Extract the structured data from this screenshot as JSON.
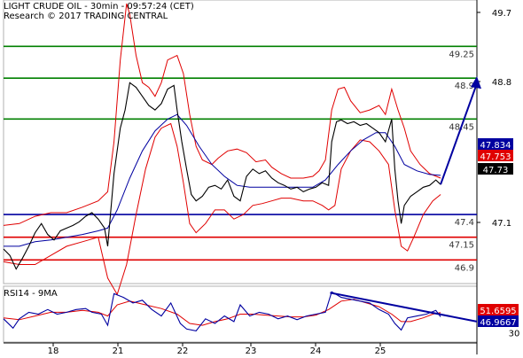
{
  "header": {
    "title": "LIGHT CRUDE OIL - 30min - 09:57:24 (CET)",
    "copyright": "Research © 2017 TRADING CENTRAL"
  },
  "chart_data": {
    "type": "line",
    "instrument": "LIGHT CRUDE OIL",
    "interval": "30min",
    "x_tick_labels": [
      "18",
      "21",
      "22",
      "23",
      "24",
      "25"
    ],
    "y_tick_labels": [
      49.7,
      48.8,
      47.1
    ],
    "ylim": [
      46.64,
      49.76
    ],
    "grid": false,
    "price_series": [
      [
        0,
        47.02
      ],
      [
        4,
        46.95
      ],
      [
        8,
        46.8
      ],
      [
        12,
        46.92
      ],
      [
        16,
        47.05
      ],
      [
        20,
        47.2
      ],
      [
        24,
        47.3
      ],
      [
        28,
        47.18
      ],
      [
        32,
        47.12
      ],
      [
        36,
        47.22
      ],
      [
        40,
        47.25
      ],
      [
        44,
        47.28
      ],
      [
        48,
        47.32
      ],
      [
        52,
        47.38
      ],
      [
        56,
        47.42
      ],
      [
        60,
        47.35
      ],
      [
        64,
        47.25
      ],
      [
        66,
        47.05
      ],
      [
        70,
        47.85
      ],
      [
        74,
        48.35
      ],
      [
        77,
        48.55
      ],
      [
        80,
        48.85
      ],
      [
        84,
        48.8
      ],
      [
        88,
        48.7
      ],
      [
        92,
        48.6
      ],
      [
        96,
        48.55
      ],
      [
        100,
        48.62
      ],
      [
        104,
        48.78
      ],
      [
        108,
        48.82
      ],
      [
        110,
        48.55
      ],
      [
        113,
        48.2
      ],
      [
        116,
        47.9
      ],
      [
        119,
        47.62
      ],
      [
        122,
        47.55
      ],
      [
        126,
        47.6
      ],
      [
        130,
        47.7
      ],
      [
        134,
        47.72
      ],
      [
        138,
        47.68
      ],
      [
        142,
        47.78
      ],
      [
        146,
        47.6
      ],
      [
        150,
        47.55
      ],
      [
        154,
        47.82
      ],
      [
        158,
        47.9
      ],
      [
        162,
        47.85
      ],
      [
        166,
        47.88
      ],
      [
        170,
        47.8
      ],
      [
        174,
        47.75
      ],
      [
        178,
        47.72
      ],
      [
        182,
        47.68
      ],
      [
        186,
        47.7
      ],
      [
        190,
        47.65
      ],
      [
        194,
        47.68
      ],
      [
        198,
        47.7
      ],
      [
        202,
        47.75
      ],
      [
        206,
        47.72
      ],
      [
        208,
        48.2
      ],
      [
        211,
        48.42
      ],
      [
        214,
        48.44
      ],
      [
        218,
        48.4
      ],
      [
        222,
        48.42
      ],
      [
        226,
        48.38
      ],
      [
        230,
        48.4
      ],
      [
        234,
        48.35
      ],
      [
        238,
        48.3
      ],
      [
        242,
        48.2
      ],
      [
        246,
        48.45
      ],
      [
        248,
        47.9
      ],
      [
        250,
        47.55
      ],
      [
        252,
        47.3
      ],
      [
        254,
        47.5
      ],
      [
        258,
        47.6
      ],
      [
        262,
        47.65
      ],
      [
        266,
        47.7
      ],
      [
        270,
        47.72
      ],
      [
        274,
        47.78
      ],
      [
        277,
        47.73
      ]
    ],
    "bollinger_upper": [
      [
        0,
        47.28
      ],
      [
        10,
        47.3
      ],
      [
        20,
        47.38
      ],
      [
        30,
        47.42
      ],
      [
        40,
        47.42
      ],
      [
        50,
        47.48
      ],
      [
        60,
        47.55
      ],
      [
        66,
        47.65
      ],
      [
        70,
        48.2
      ],
      [
        74,
        49.1
      ],
      [
        78,
        49.72
      ],
      [
        80,
        49.6
      ],
      [
        84,
        49.15
      ],
      [
        88,
        48.85
      ],
      [
        92,
        48.8
      ],
      [
        96,
        48.7
      ],
      [
        100,
        48.85
      ],
      [
        104,
        49.1
      ],
      [
        110,
        49.15
      ],
      [
        114,
        48.95
      ],
      [
        118,
        48.5
      ],
      [
        122,
        48.15
      ],
      [
        126,
        48.0
      ],
      [
        132,
        47.95
      ],
      [
        136,
        48.02
      ],
      [
        142,
        48.1
      ],
      [
        148,
        48.12
      ],
      [
        154,
        48.08
      ],
      [
        160,
        47.98
      ],
      [
        166,
        48.0
      ],
      [
        170,
        47.92
      ],
      [
        176,
        47.85
      ],
      [
        182,
        47.8
      ],
      [
        190,
        47.8
      ],
      [
        196,
        47.82
      ],
      [
        200,
        47.88
      ],
      [
        204,
        48.0
      ],
      [
        208,
        48.55
      ],
      [
        212,
        48.78
      ],
      [
        216,
        48.8
      ],
      [
        220,
        48.65
      ],
      [
        226,
        48.52
      ],
      [
        232,
        48.55
      ],
      [
        238,
        48.6
      ],
      [
        242,
        48.5
      ],
      [
        246,
        48.78
      ],
      [
        250,
        48.55
      ],
      [
        254,
        48.35
      ],
      [
        258,
        48.1
      ],
      [
        264,
        47.95
      ],
      [
        270,
        47.85
      ],
      [
        277,
        47.8
      ]
    ],
    "bollinger_lower": [
      [
        0,
        46.88
      ],
      [
        10,
        46.85
      ],
      [
        20,
        46.85
      ],
      [
        30,
        46.95
      ],
      [
        40,
        47.05
      ],
      [
        50,
        47.1
      ],
      [
        60,
        47.15
      ],
      [
        66,
        46.7
      ],
      [
        72,
        46.52
      ],
      [
        78,
        46.85
      ],
      [
        84,
        47.4
      ],
      [
        90,
        47.9
      ],
      [
        96,
        48.25
      ],
      [
        100,
        48.35
      ],
      [
        106,
        48.4
      ],
      [
        110,
        48.15
      ],
      [
        114,
        47.75
      ],
      [
        118,
        47.3
      ],
      [
        122,
        47.2
      ],
      [
        128,
        47.3
      ],
      [
        134,
        47.45
      ],
      [
        140,
        47.45
      ],
      [
        146,
        47.35
      ],
      [
        152,
        47.4
      ],
      [
        158,
        47.5
      ],
      [
        164,
        47.52
      ],
      [
        170,
        47.55
      ],
      [
        176,
        47.58
      ],
      [
        182,
        47.58
      ],
      [
        190,
        47.55
      ],
      [
        196,
        47.55
      ],
      [
        202,
        47.5
      ],
      [
        206,
        47.45
      ],
      [
        210,
        47.5
      ],
      [
        214,
        47.9
      ],
      [
        220,
        48.1
      ],
      [
        226,
        48.22
      ],
      [
        232,
        48.2
      ],
      [
        238,
        48.1
      ],
      [
        244,
        47.95
      ],
      [
        248,
        47.45
      ],
      [
        252,
        47.05
      ],
      [
        256,
        47.0
      ],
      [
        260,
        47.15
      ],
      [
        266,
        47.4
      ],
      [
        272,
        47.55
      ],
      [
        277,
        47.62
      ]
    ],
    "moving_average": [
      [
        0,
        47.05
      ],
      [
        10,
        47.05
      ],
      [
        20,
        47.1
      ],
      [
        30,
        47.12
      ],
      [
        40,
        47.15
      ],
      [
        50,
        47.18
      ],
      [
        60,
        47.22
      ],
      [
        66,
        47.25
      ],
      [
        72,
        47.45
      ],
      [
        80,
        47.8
      ],
      [
        88,
        48.1
      ],
      [
        96,
        48.32
      ],
      [
        104,
        48.45
      ],
      [
        110,
        48.5
      ],
      [
        116,
        48.38
      ],
      [
        124,
        48.15
      ],
      [
        132,
        47.95
      ],
      [
        140,
        47.82
      ],
      [
        148,
        47.72
      ],
      [
        156,
        47.7
      ],
      [
        164,
        47.7
      ],
      [
        172,
        47.7
      ],
      [
        180,
        47.7
      ],
      [
        188,
        47.7
      ],
      [
        196,
        47.7
      ],
      [
        204,
        47.78
      ],
      [
        212,
        47.95
      ],
      [
        220,
        48.1
      ],
      [
        228,
        48.22
      ],
      [
        236,
        48.3
      ],
      [
        242,
        48.3
      ],
      [
        248,
        48.15
      ],
      [
        254,
        47.95
      ],
      [
        262,
        47.88
      ],
      [
        270,
        47.84
      ],
      [
        277,
        47.83
      ]
    ],
    "horizontal_levels": [
      {
        "label": "49.25",
        "value": 49.25,
        "color": "#008000"
      },
      {
        "label": "48.9",
        "value": 48.9,
        "color": "#008000"
      },
      {
        "label": "48.45",
        "value": 48.45,
        "color": "#008000"
      },
      {
        "label": "47.4",
        "value": 47.4,
        "color": "#0000a0"
      },
      {
        "label": "47.15",
        "value": 47.15,
        "color": "#e00000"
      },
      {
        "label": "46.9",
        "value": 46.9,
        "color": "#e00000"
      }
    ],
    "price_tags": [
      {
        "label": "47.834",
        "value": 47.834,
        "color": "#0000a0"
      },
      {
        "label": "47.753",
        "value": 47.753,
        "color": "#e00000"
      },
      {
        "label": "47.73",
        "value": 47.73,
        "color": "#000000"
      }
    ],
    "forecast_arrow": {
      "from": [
        277,
        47.73
      ],
      "to": [
        300,
        48.92
      ]
    },
    "rsi": {
      "title": "RSI14 - 9MA",
      "y_tick_labels": [
        30
      ],
      "ylim": [
        20,
        80
      ],
      "tags": [
        {
          "label": "51.6595",
          "value": 51.66,
          "color": "#e00000"
        },
        {
          "label": "46.9667",
          "value": 46.97,
          "color": "#0000a0"
        }
      ],
      "rsi_values": [
        [
          0,
          45
        ],
        [
          6,
          35
        ],
        [
          10,
          45
        ],
        [
          16,
          52
        ],
        [
          22,
          50
        ],
        [
          28,
          55
        ],
        [
          34,
          50
        ],
        [
          40,
          52
        ],
        [
          46,
          55
        ],
        [
          52,
          56
        ],
        [
          56,
          52
        ],
        [
          62,
          50
        ],
        [
          66,
          38
        ],
        [
          70,
          72
        ],
        [
          76,
          68
        ],
        [
          82,
          62
        ],
        [
          88,
          65
        ],
        [
          94,
          55
        ],
        [
          100,
          48
        ],
        [
          106,
          62
        ],
        [
          112,
          40
        ],
        [
          116,
          34
        ],
        [
          122,
          32
        ],
        [
          128,
          45
        ],
        [
          134,
          40
        ],
        [
          140,
          48
        ],
        [
          146,
          42
        ],
        [
          150,
          60
        ],
        [
          156,
          48
        ],
        [
          162,
          52
        ],
        [
          168,
          50
        ],
        [
          174,
          45
        ],
        [
          180,
          48
        ],
        [
          186,
          44
        ],
        [
          192,
          48
        ],
        [
          198,
          50
        ],
        [
          204,
          52
        ],
        [
          208,
          74
        ],
        [
          214,
          68
        ],
        [
          220,
          66
        ],
        [
          226,
          64
        ],
        [
          232,
          62
        ],
        [
          238,
          55
        ],
        [
          244,
          50
        ],
        [
          248,
          40
        ],
        [
          252,
          33
        ],
        [
          256,
          46
        ],
        [
          262,
          48
        ],
        [
          268,
          50
        ],
        [
          274,
          54
        ],
        [
          277,
          47
        ]
      ],
      "ma_values": [
        [
          0,
          46
        ],
        [
          10,
          44
        ],
        [
          20,
          48
        ],
        [
          30,
          52
        ],
        [
          40,
          52
        ],
        [
          50,
          54
        ],
        [
          60,
          52
        ],
        [
          66,
          48
        ],
        [
          72,
          60
        ],
        [
          80,
          64
        ],
        [
          90,
          60
        ],
        [
          100,
          56
        ],
        [
          110,
          50
        ],
        [
          118,
          40
        ],
        [
          126,
          38
        ],
        [
          134,
          42
        ],
        [
          142,
          45
        ],
        [
          150,
          50
        ],
        [
          158,
          50
        ],
        [
          166,
          49
        ],
        [
          174,
          48
        ],
        [
          182,
          47
        ],
        [
          190,
          47
        ],
        [
          198,
          49
        ],
        [
          206,
          55
        ],
        [
          214,
          64
        ],
        [
          222,
          66
        ],
        [
          230,
          62
        ],
        [
          238,
          58
        ],
        [
          246,
          50
        ],
        [
          252,
          42
        ],
        [
          258,
          42
        ],
        [
          266,
          46
        ],
        [
          272,
          50
        ],
        [
          277,
          51.66
        ]
      ],
      "trendline": {
        "from": [
          207,
          73
        ],
        "to": [
          300,
          42
        ]
      }
    }
  }
}
